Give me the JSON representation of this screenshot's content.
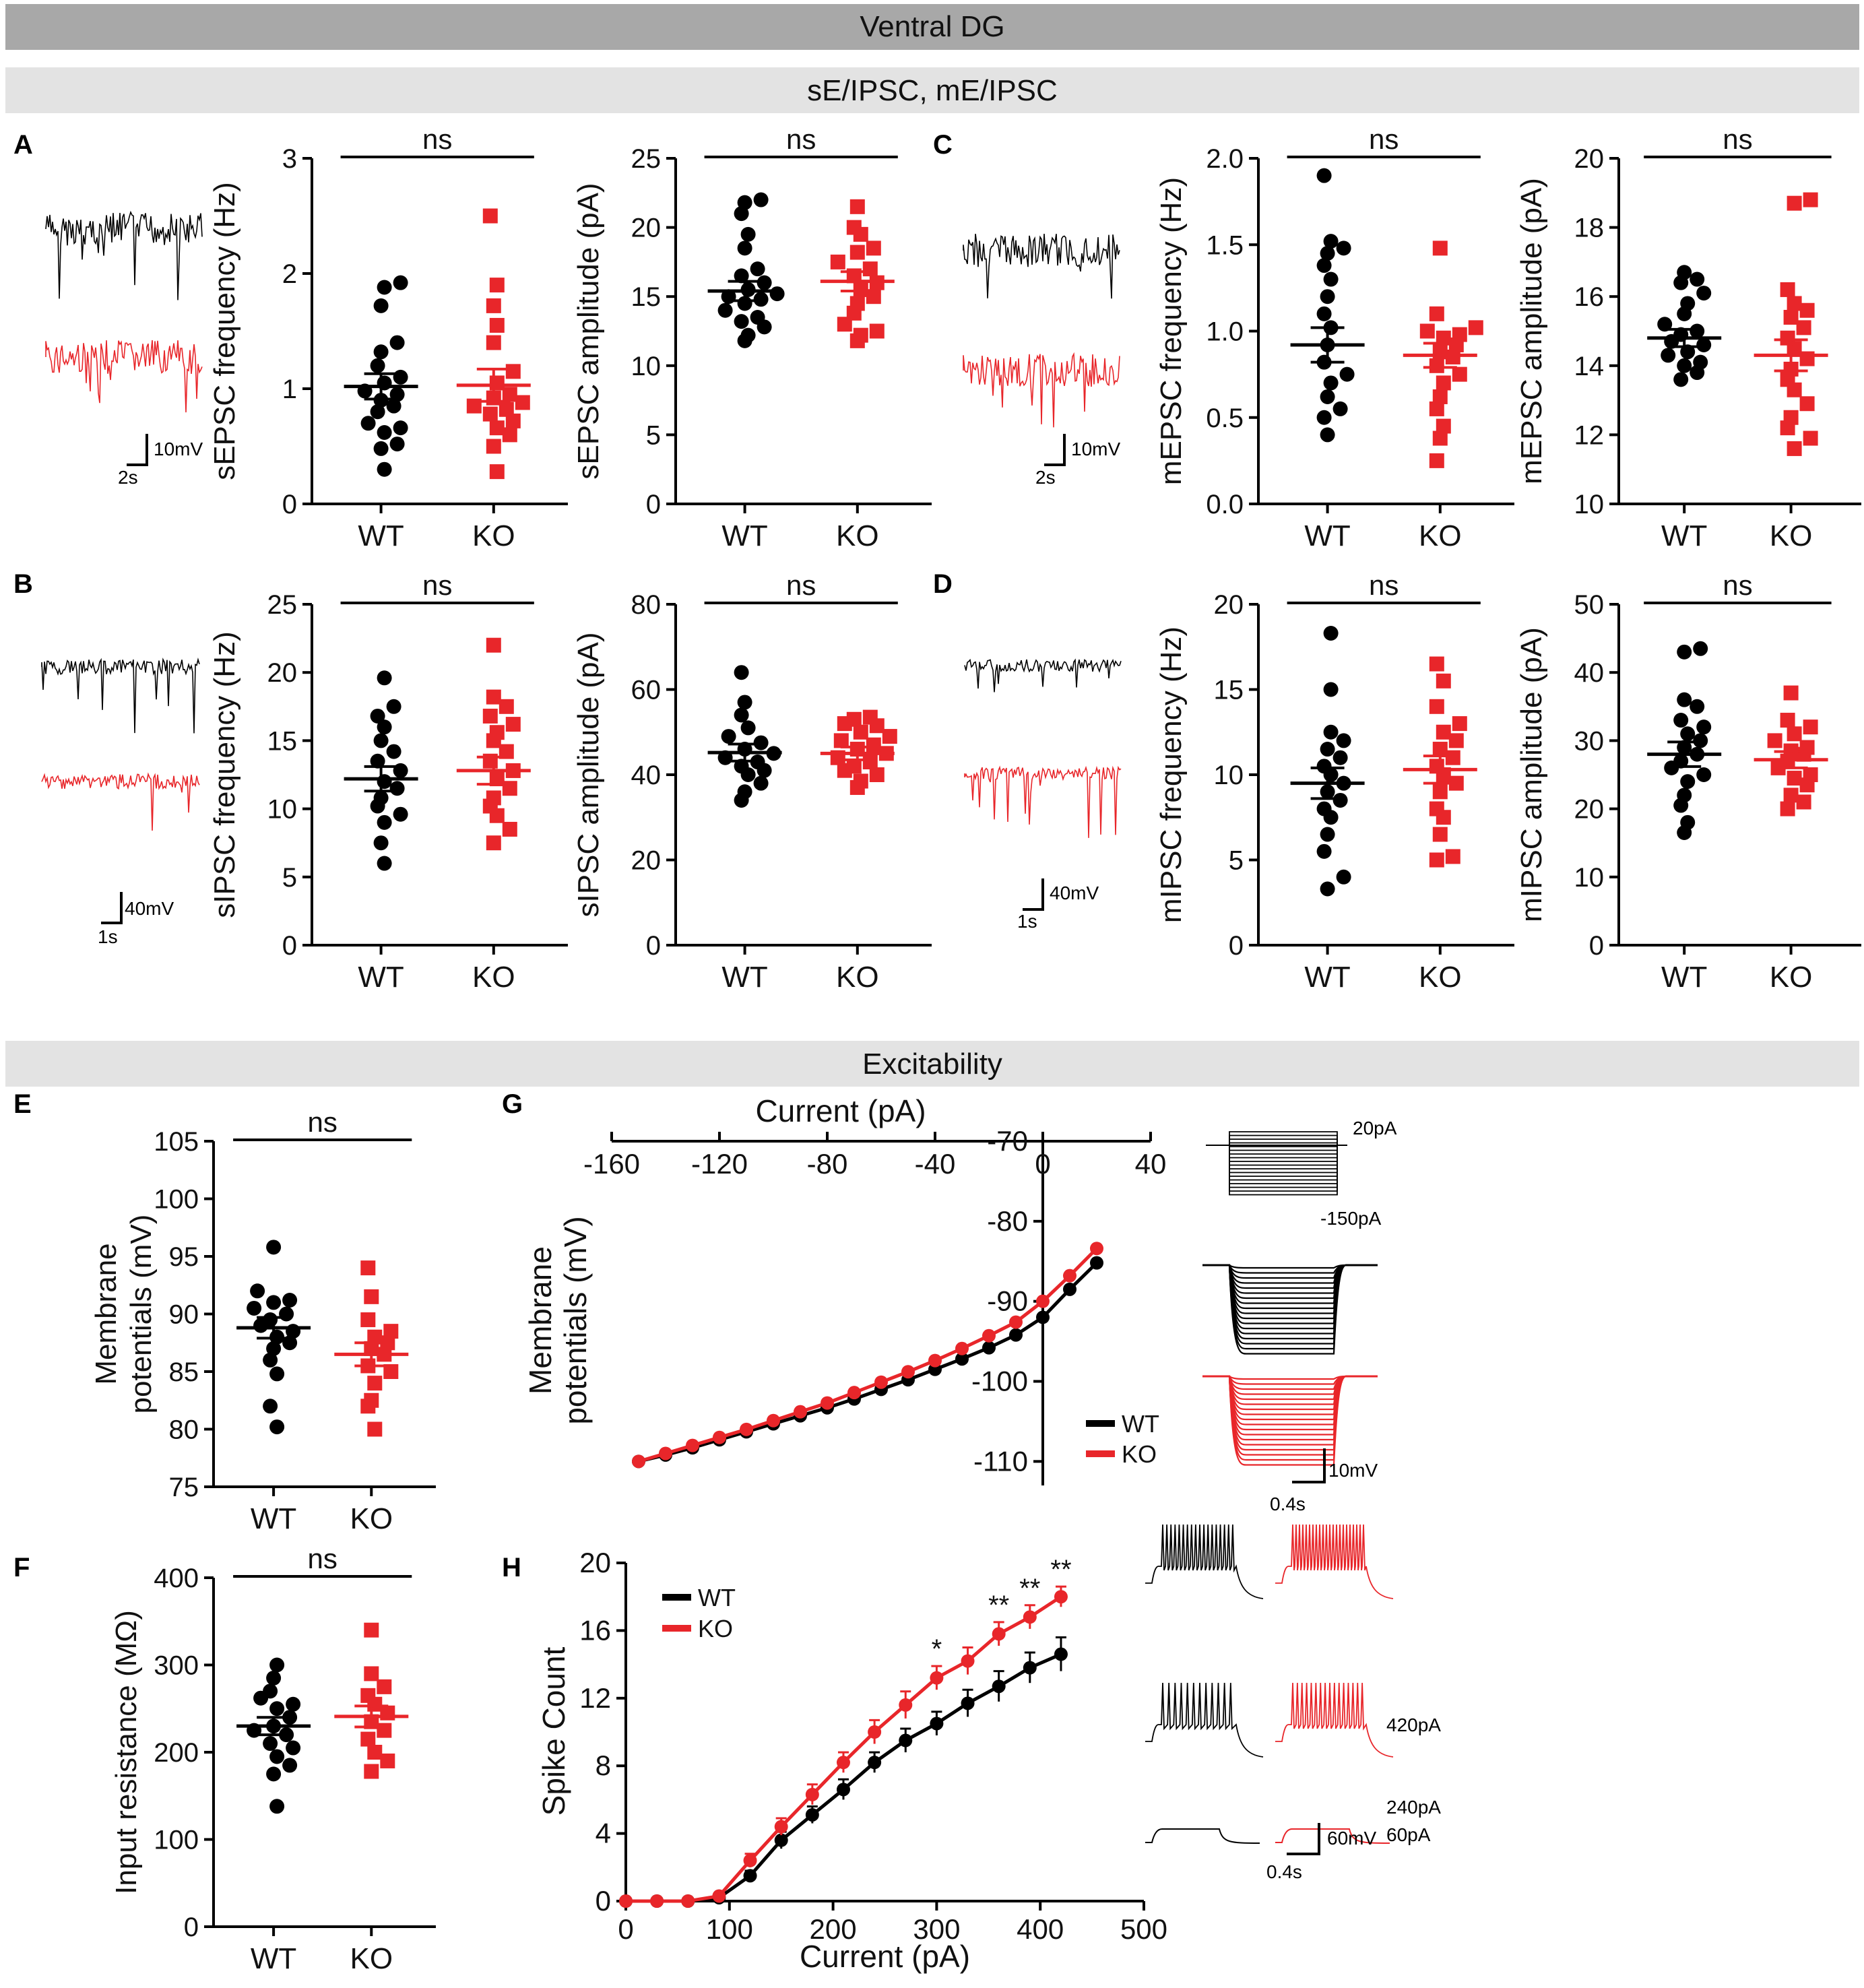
{
  "banners": {
    "top": "Ventral DG",
    "sub": "sE/IPSC, mE/IPSC",
    "excitability": "Excitability"
  },
  "panel_letters": {
    "A": "A",
    "B": "B",
    "C": "C",
    "D": "D",
    "E": "E",
    "F": "F",
    "G": "G",
    "H": "H"
  },
  "colors": {
    "wt": "#000000",
    "ko": "#e8262a",
    "banner_dark": "#a8a8a8",
    "banner_light": "#e3e3e3"
  },
  "scale_bars": {
    "A": {
      "v": "10mV",
      "t": "2s"
    },
    "B": {
      "v": "40mV",
      "t": "1s"
    },
    "C": {
      "v": "10mV",
      "t": "2s"
    },
    "D": {
      "v": "40mV",
      "t": "1s"
    },
    "G": {
      "v": "10mV",
      "t": "0.4s"
    },
    "H": {
      "v": "60mV",
      "t": "0.4s"
    }
  },
  "g_inset": {
    "top_label": "20pA",
    "bottom_label": "-150pA"
  },
  "h_inset": {
    "labels": [
      "420pA",
      "240pA",
      "60pA"
    ]
  },
  "chart_data": [
    {
      "id": "A1",
      "type": "scatter",
      "ylabel": "sEPSC frequency (Hz)",
      "categories": [
        "WT",
        "KO"
      ],
      "ylim": [
        0,
        3
      ],
      "yticks": [
        0,
        1,
        2,
        3
      ],
      "sig": "ns",
      "series": [
        {
          "name": "WT",
          "mean": 1.02,
          "sem": 0.11,
          "values": [
            0.3,
            0.48,
            0.52,
            0.62,
            0.66,
            0.7,
            0.8,
            0.85,
            0.9,
            0.95,
            0.98,
            1.05,
            1.1,
            1.2,
            1.32,
            1.4,
            1.72,
            1.88,
            1.92
          ]
        },
        {
          "name": "KO",
          "mean": 1.03,
          "sem": 0.14,
          "values": [
            0.28,
            0.5,
            0.6,
            0.66,
            0.72,
            0.78,
            0.82,
            0.85,
            0.88,
            0.92,
            0.95,
            1.05,
            1.15,
            1.4,
            1.55,
            1.72,
            1.9,
            2.5
          ]
        }
      ]
    },
    {
      "id": "A2",
      "type": "scatter",
      "ylabel": "sEPSC amplitude (pA)",
      "categories": [
        "WT",
        "KO"
      ],
      "ylim": [
        0,
        25
      ],
      "yticks": [
        0,
        5,
        10,
        15,
        20,
        25
      ],
      "sig": "ns",
      "series": [
        {
          "name": "WT",
          "mean": 15.4,
          "sem": 0.7,
          "values": [
            11.8,
            12.2,
            12.8,
            13.2,
            13.5,
            14.0,
            14.5,
            14.8,
            15.0,
            15.2,
            15.5,
            16.0,
            16.5,
            17.0,
            18.5,
            19.5,
            21.0,
            21.8,
            22.0
          ]
        },
        {
          "name": "KO",
          "mean": 16.1,
          "sem": 0.7,
          "values": [
            11.8,
            12.2,
            12.5,
            13.0,
            13.8,
            14.5,
            15.0,
            15.5,
            16.0,
            16.5,
            17.0,
            17.5,
            18.2,
            18.5,
            19.5,
            20.0,
            21.5
          ]
        }
      ]
    },
    {
      "id": "C1",
      "type": "scatter",
      "ylabel": "mEPSC frequency (Hz)",
      "categories": [
        "WT",
        "KO"
      ],
      "ylim": [
        0,
        2
      ],
      "yticks": [
        0.0,
        0.5,
        1.0,
        1.5,
        2.0
      ],
      "sig": "ns",
      "series": [
        {
          "name": "WT",
          "mean": 0.92,
          "sem": 0.1,
          "values": [
            0.4,
            0.5,
            0.55,
            0.62,
            0.7,
            0.75,
            0.82,
            0.92,
            1.02,
            1.1,
            1.2,
            1.3,
            1.38,
            1.45,
            1.48,
            1.52,
            1.9
          ]
        },
        {
          "name": "KO",
          "mean": 0.86,
          "sem": 0.07,
          "values": [
            0.25,
            0.38,
            0.45,
            0.55,
            0.62,
            0.7,
            0.75,
            0.8,
            0.85,
            0.88,
            0.92,
            0.96,
            0.98,
            1.0,
            1.02,
            1.1,
            1.48
          ]
        }
      ]
    },
    {
      "id": "C2",
      "type": "scatter",
      "ylabel": "mEPSC amplitude (pA)",
      "categories": [
        "WT",
        "KO"
      ],
      "ylim": [
        10,
        20
      ],
      "yticks": [
        10,
        12,
        14,
        16,
        18,
        20
      ],
      "sig": "ns",
      "series": [
        {
          "name": "WT",
          "mean": 14.8,
          "sem": 0.25,
          "values": [
            13.6,
            13.8,
            14.0,
            14.1,
            14.3,
            14.4,
            14.6,
            14.7,
            14.9,
            15.0,
            15.2,
            15.5,
            15.8,
            16.1,
            16.4,
            16.5,
            16.7
          ]
        },
        {
          "name": "KO",
          "mean": 14.3,
          "sem": 0.45,
          "values": [
            11.6,
            11.9,
            12.2,
            12.5,
            12.9,
            13.3,
            13.6,
            13.9,
            14.2,
            14.5,
            14.8,
            15.1,
            15.4,
            15.6,
            15.8,
            16.2,
            18.7,
            18.8
          ]
        }
      ]
    },
    {
      "id": "B1",
      "type": "scatter",
      "ylabel": "sIPSC frequency (Hz)",
      "categories": [
        "WT",
        "KO"
      ],
      "ylim": [
        0,
        25
      ],
      "yticks": [
        0,
        5,
        10,
        15,
        20,
        25
      ],
      "sig": "ns",
      "series": [
        {
          "name": "WT",
          "mean": 12.2,
          "sem": 0.9,
          "values": [
            6.0,
            7.5,
            9.0,
            9.6,
            10.2,
            10.8,
            11.5,
            12.0,
            12.8,
            13.5,
            14.2,
            15.0,
            16.0,
            16.8,
            17.5,
            19.6
          ]
        },
        {
          "name": "KO",
          "mean": 12.8,
          "sem": 1.0,
          "values": [
            7.5,
            8.5,
            9.5,
            10.2,
            10.8,
            11.5,
            12.2,
            12.8,
            13.5,
            14.2,
            15.0,
            15.6,
            16.2,
            16.8,
            17.5,
            18.2,
            22.0
          ]
        }
      ]
    },
    {
      "id": "B2",
      "type": "scatter",
      "ylabel": "sIPSC amplitude (pA)",
      "categories": [
        "WT",
        "KO"
      ],
      "ylim": [
        0,
        80
      ],
      "yticks": [
        0,
        20,
        40,
        60,
        80
      ],
      "sig": "ns",
      "series": [
        {
          "name": "WT",
          "mean": 45.2,
          "sem": 2.0,
          "values": [
            34.0,
            36.0,
            38.0,
            40.0,
            41.0,
            42.0,
            43.0,
            44.0,
            45.0,
            46.0,
            47.5,
            49.0,
            51.0,
            54.0,
            57.0,
            64.0
          ]
        },
        {
          "name": "KO",
          "mean": 45.0,
          "sem": 1.5,
          "values": [
            37.0,
            38.5,
            40.0,
            41.0,
            42.0,
            43.0,
            44.0,
            45.0,
            46.0,
            47.0,
            48.0,
            49.0,
            50.0,
            51.5,
            52.0,
            53.0,
            53.5
          ]
        }
      ]
    },
    {
      "id": "D1",
      "type": "scatter",
      "ylabel": "mIPSC frequency (Hz)",
      "categories": [
        "WT",
        "KO"
      ],
      "ylim": [
        0,
        20
      ],
      "yticks": [
        0,
        5,
        10,
        15,
        20
      ],
      "sig": "ns",
      "series": [
        {
          "name": "WT",
          "mean": 9.5,
          "sem": 0.9,
          "values": [
            3.3,
            4.0,
            5.5,
            6.5,
            7.5,
            8.0,
            8.5,
            9.0,
            9.5,
            10.0,
            10.5,
            11.0,
            11.5,
            12.0,
            12.5,
            15.0,
            18.3
          ]
        },
        {
          "name": "KO",
          "mean": 10.3,
          "sem": 0.8,
          "values": [
            5.0,
            5.2,
            6.5,
            7.5,
            8.0,
            9.0,
            9.5,
            10.0,
            10.5,
            11.0,
            11.5,
            12.0,
            12.5,
            13.0,
            14.0,
            15.5,
            16.5
          ]
        }
      ]
    },
    {
      "id": "D2",
      "type": "scatter",
      "ylabel": "mIPSC amplitude (pA)",
      "categories": [
        "WT",
        "KO"
      ],
      "ylim": [
        0,
        50
      ],
      "yticks": [
        0,
        10,
        20,
        30,
        40,
        50
      ],
      "sig": "ns",
      "series": [
        {
          "name": "WT",
          "mean": 28.0,
          "sem": 1.8,
          "values": [
            16.5,
            18.0,
            20.5,
            22.0,
            24.0,
            25.0,
            26.0,
            27.0,
            28.0,
            29.0,
            30.0,
            31.0,
            32.0,
            33.0,
            35.0,
            36.0,
            43.0,
            43.5
          ]
        },
        {
          "name": "KO",
          "mean": 27.2,
          "sem": 1.2,
          "values": [
            20.0,
            21.0,
            22.0,
            23.5,
            24.5,
            25.0,
            26.0,
            27.0,
            28.0,
            28.5,
            29.0,
            30.0,
            31.0,
            32.0,
            33.0,
            37.0
          ]
        }
      ]
    },
    {
      "id": "E",
      "type": "scatter",
      "ylabel": "Membrane potentials (mV)",
      "categories": [
        "WT",
        "KO"
      ],
      "ylim": [
        75,
        105
      ],
      "yticks": [
        75,
        80,
        85,
        90,
        95,
        100,
        105
      ],
      "sig": "ns",
      "series": [
        {
          "name": "WT",
          "mean": 88.8,
          "sem": 0.9,
          "values": [
            80.2,
            82.0,
            84.8,
            86.0,
            87.0,
            87.5,
            88.0,
            88.5,
            89.0,
            89.5,
            90.0,
            90.5,
            91.0,
            91.2,
            92.0,
            95.8
          ]
        },
        {
          "name": "KO",
          "mean": 86.5,
          "sem": 1.0,
          "values": [
            80.0,
            82.0,
            82.5,
            84.0,
            85.0,
            85.5,
            86.5,
            87.0,
            87.5,
            88.0,
            88.5,
            89.5,
            91.5,
            94.0
          ]
        }
      ]
    },
    {
      "id": "F",
      "type": "scatter",
      "ylabel": "Input resistance (MΩ)",
      "categories": [
        "WT",
        "KO"
      ],
      "ylim": [
        0,
        400
      ],
      "yticks": [
        0,
        100,
        200,
        300,
        400
      ],
      "sig": "ns",
      "series": [
        {
          "name": "WT",
          "mean": 230,
          "sem": 10,
          "values": [
            138,
            175,
            185,
            195,
            205,
            210,
            220,
            225,
            230,
            240,
            250,
            255,
            262,
            270,
            285,
            300
          ]
        },
        {
          "name": "KO",
          "mean": 241,
          "sem": 12,
          "values": [
            178,
            190,
            200,
            215,
            225,
            235,
            245,
            255,
            265,
            275,
            290,
            340
          ]
        }
      ]
    },
    {
      "id": "G",
      "type": "line",
      "title": "",
      "xlabel": "Current (pA)",
      "ylabel": "Membrane potentials (mV)",
      "xlim": [
        -160,
        40
      ],
      "ylim": [
        -113,
        -70
      ],
      "xticks": [
        -160,
        -120,
        -80,
        -40,
        0,
        40
      ],
      "yticks": [
        -110,
        -100,
        -90,
        -80,
        -70
      ],
      "x": [
        -150,
        -140,
        -130,
        -120,
        -110,
        -100,
        -90,
        -80,
        -70,
        -60,
        -50,
        -40,
        -30,
        -20,
        -10,
        0,
        10,
        20
      ],
      "series": [
        {
          "name": "WT",
          "values": [
            -110.0,
            -109.2,
            -108.3,
            -107.3,
            -106.3,
            -105.3,
            -104.3,
            -103.3,
            -102.2,
            -101.0,
            -99.8,
            -98.5,
            -97.2,
            -95.8,
            -94.2,
            -92.0,
            -88.5,
            -85.2
          ],
          "sem": 0.6
        },
        {
          "name": "KO",
          "values": [
            -110.0,
            -109.0,
            -108.0,
            -107.0,
            -106.0,
            -104.9,
            -103.8,
            -102.7,
            -101.4,
            -100.1,
            -98.8,
            -97.4,
            -95.9,
            -94.3,
            -92.6,
            -90.0,
            -86.8,
            -83.4
          ],
          "sem": 0.6
        }
      ],
      "legend": {
        "position": "bottom-right"
      }
    },
    {
      "id": "H",
      "type": "line",
      "xlabel": "Current (pA)",
      "ylabel": "Spike Count",
      "xlim": [
        0,
        500
      ],
      "ylim": [
        0,
        20
      ],
      "xticks": [
        0,
        100,
        200,
        300,
        400,
        500
      ],
      "yticks": [
        0,
        4,
        8,
        12,
        16,
        20
      ],
      "x": [
        0,
        30,
        60,
        90,
        120,
        150,
        180,
        210,
        240,
        270,
        300,
        330,
        360,
        390,
        420
      ],
      "series": [
        {
          "name": "WT",
          "values": [
            0,
            0,
            0,
            0.2,
            1.5,
            3.6,
            5.1,
            6.6,
            8.2,
            9.5,
            10.5,
            11.7,
            12.7,
            13.8,
            14.6
          ],
          "sem": [
            0,
            0,
            0,
            0.1,
            0.3,
            0.5,
            0.5,
            0.6,
            0.6,
            0.7,
            0.7,
            0.8,
            0.9,
            0.9,
            1.0
          ]
        },
        {
          "name": "KO",
          "values": [
            0,
            0,
            0,
            0.3,
            2.4,
            4.4,
            6.3,
            8.2,
            10.0,
            11.6,
            13.2,
            14.2,
            15.8,
            16.8,
            18.0
          ],
          "sem": [
            0,
            0,
            0,
            0.1,
            0.4,
            0.5,
            0.6,
            0.6,
            0.7,
            0.8,
            0.7,
            0.8,
            0.7,
            0.7,
            0.6
          ]
        }
      ],
      "annotations": [
        {
          "x": 300,
          "text": "*"
        },
        {
          "x": 360,
          "text": "**"
        },
        {
          "x": 390,
          "text": "**"
        },
        {
          "x": 420,
          "text": "**"
        }
      ],
      "legend": {
        "position": "top-left"
      }
    }
  ]
}
